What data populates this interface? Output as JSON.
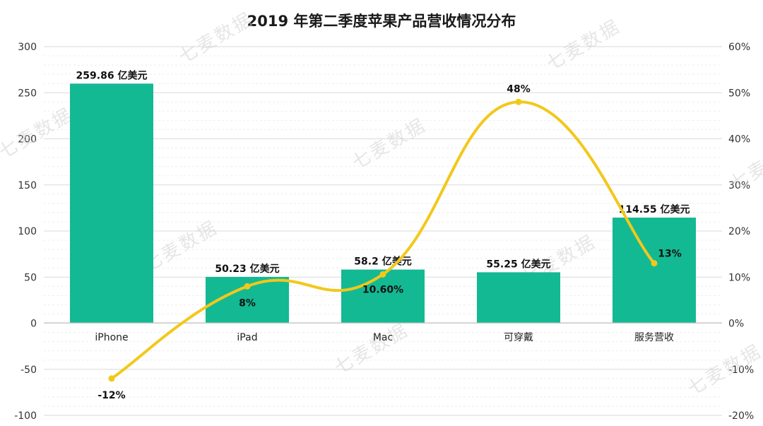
{
  "chart_data": {
    "type": "bar",
    "title": "2019 年第二季度苹果产品营收情况分布",
    "categories": [
      "iPhone",
      "iPad",
      "Mac",
      "可穿戴",
      "服务营收"
    ],
    "series": [
      {
        "type": "bar",
        "axis": "left",
        "values": [
          259.86,
          50.23,
          58.2,
          55.25,
          114.55
        ],
        "labels": [
          "259.86 亿美元",
          "50.23 亿美元",
          "58.2 亿美元",
          "55.25 亿美元",
          "114.55 亿美元"
        ],
        "color": "#13b993"
      },
      {
        "type": "line",
        "axis": "right",
        "values": [
          -12,
          8,
          10.6,
          48,
          13
        ],
        "labels": [
          "-12%",
          "8%",
          "10.60%",
          "48%",
          "13%"
        ],
        "color": "#f2c81b"
      }
    ],
    "y_left": {
      "min": -100,
      "max": 300,
      "step": 50,
      "ticks": [
        "300",
        "250",
        "200",
        "150",
        "100",
        "50",
        "0",
        "-50",
        "-100"
      ]
    },
    "y_right": {
      "min": -20,
      "max": 60,
      "step": 10,
      "ticks": [
        "60%",
        "50%",
        "40%",
        "30%",
        "20%",
        "10%",
        "0%",
        "-10%",
        "-20%"
      ]
    },
    "grid": true,
    "legend": "none"
  },
  "watermark": "七麦数据"
}
